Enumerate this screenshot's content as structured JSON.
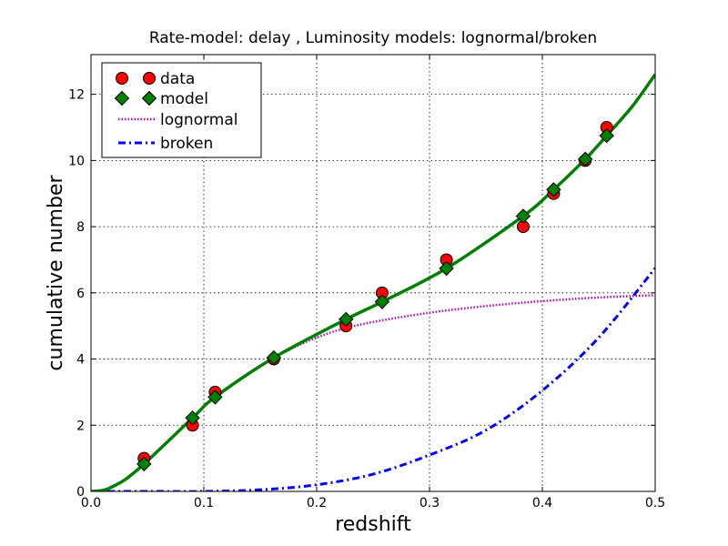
{
  "chart_data": {
    "type": "line",
    "title": "Rate-model: delay , Luminosity models: lognormal/broken",
    "xlabel": "redshift",
    "ylabel": "cumulative number",
    "xlim": [
      0.0,
      0.5
    ],
    "ylim": [
      0,
      13.2
    ],
    "xticks": [
      0.0,
      0.1,
      0.2,
      0.3,
      0.4,
      0.5
    ],
    "xtick_labels": [
      "0.0",
      "0.1",
      "0.2",
      "0.3",
      "0.4",
      "0.5"
    ],
    "yticks": [
      0,
      2,
      4,
      6,
      8,
      10,
      12
    ],
    "ytick_labels": [
      "0",
      "2",
      "4",
      "6",
      "8",
      "10",
      "12"
    ],
    "grid": true,
    "legend_position": "top-left",
    "legend": [
      "data",
      "model",
      "lognormal",
      "broken"
    ],
    "series": [
      {
        "name": "data",
        "kind": "scatter",
        "marker": "circle",
        "color": "#ff0000",
        "x": [
          0.047,
          0.09,
          0.11,
          0.162,
          0.226,
          0.258,
          0.315,
          0.383,
          0.41,
          0.438,
          0.457
        ],
        "y": [
          1,
          2,
          3,
          4,
          5,
          6,
          7,
          8,
          9,
          10,
          11
        ]
      },
      {
        "name": "model",
        "kind": "line+markers",
        "marker": "diamond",
        "color": "#008000",
        "curve_x": [
          0.0,
          0.005,
          0.01,
          0.015,
          0.02,
          0.03,
          0.047,
          0.09,
          0.11,
          0.162,
          0.226,
          0.258,
          0.315,
          0.383,
          0.41,
          0.438,
          0.457,
          0.48,
          0.5
        ],
        "curve_y": [
          0.0,
          0.01,
          0.03,
          0.08,
          0.16,
          0.35,
          0.83,
          2.22,
          2.85,
          4.04,
          5.2,
          5.73,
          6.74,
          8.32,
          9.12,
          10.04,
          10.75,
          11.65,
          12.6
        ],
        "marker_x": [
          0.047,
          0.09,
          0.11,
          0.162,
          0.226,
          0.258,
          0.315,
          0.383,
          0.41,
          0.438,
          0.457
        ],
        "marker_y": [
          0.83,
          2.22,
          2.85,
          4.04,
          5.2,
          5.73,
          6.74,
          8.32,
          9.12,
          10.04,
          10.75
        ]
      },
      {
        "name": "lognormal",
        "kind": "line",
        "style": "dotted",
        "color": "#bf00bf",
        "x": [
          0.16,
          0.18,
          0.2,
          0.22,
          0.25,
          0.3,
          0.35,
          0.4,
          0.45,
          0.5
        ],
        "y": [
          4.0,
          4.35,
          4.65,
          4.88,
          5.12,
          5.4,
          5.6,
          5.75,
          5.86,
          5.93
        ]
      },
      {
        "name": "broken",
        "kind": "line",
        "style": "dashdot",
        "color": "#0000ff",
        "x": [
          0.0,
          0.05,
          0.1,
          0.15,
          0.2,
          0.25,
          0.3,
          0.35,
          0.4,
          0.45,
          0.5
        ],
        "y": [
          0.0,
          0.0,
          0.0,
          0.05,
          0.2,
          0.52,
          1.1,
          1.85,
          3.05,
          4.65,
          6.75
        ]
      }
    ]
  }
}
